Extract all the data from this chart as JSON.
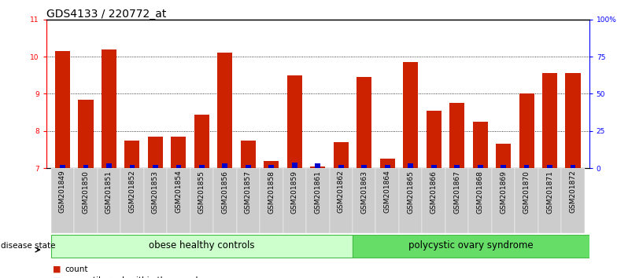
{
  "title": "GDS4133 / 220772_at",
  "samples": [
    "GSM201849",
    "GSM201850",
    "GSM201851",
    "GSM201852",
    "GSM201853",
    "GSM201854",
    "GSM201855",
    "GSM201856",
    "GSM201857",
    "GSM201858",
    "GSM201859",
    "GSM201861",
    "GSM201862",
    "GSM201863",
    "GSM201864",
    "GSM201865",
    "GSM201866",
    "GSM201867",
    "GSM201868",
    "GSM201869",
    "GSM201870",
    "GSM201871",
    "GSM201872"
  ],
  "counts": [
    10.15,
    8.85,
    10.2,
    7.75,
    7.85,
    7.85,
    8.45,
    10.1,
    7.75,
    7.2,
    9.5,
    7.05,
    7.7,
    9.45,
    7.25,
    9.85,
    8.55,
    8.75,
    8.25,
    7.65,
    9.0,
    9.55,
    9.55
  ],
  "percentile_ranks": [
    2,
    2,
    3,
    2,
    2,
    2,
    2,
    3,
    2,
    2,
    4,
    3,
    2,
    2,
    2,
    3,
    2,
    2,
    2,
    2,
    2,
    2,
    2
  ],
  "groups": [
    "obese",
    "obese",
    "obese",
    "obese",
    "obese",
    "obese",
    "obese",
    "obese",
    "obese",
    "obese",
    "obese",
    "obese",
    "obese",
    "poly",
    "poly",
    "poly",
    "poly",
    "poly",
    "poly",
    "poly",
    "poly",
    "poly",
    "poly"
  ],
  "group_labels": [
    "obese healthy controls",
    "polycystic ovary syndrome"
  ],
  "obese_color": "#ccffcc",
  "poly_color": "#66dd66",
  "bar_color": "#cc2200",
  "percentile_color": "#0000cc",
  "ylim_left": [
    7,
    11
  ],
  "ylim_right": [
    0,
    100
  ],
  "yticks_left": [
    7,
    8,
    9,
    10,
    11
  ],
  "yticks_right": [
    0,
    25,
    50,
    75,
    100
  ],
  "ytick_labels_right": [
    "0",
    "25",
    "50",
    "75",
    "100%"
  ],
  "bar_width": 0.65,
  "title_fontsize": 10,
  "tick_fontsize": 6.5,
  "legend_fontsize": 7.5,
  "group_fontsize": 8.5,
  "label_fontsize": 6.5
}
